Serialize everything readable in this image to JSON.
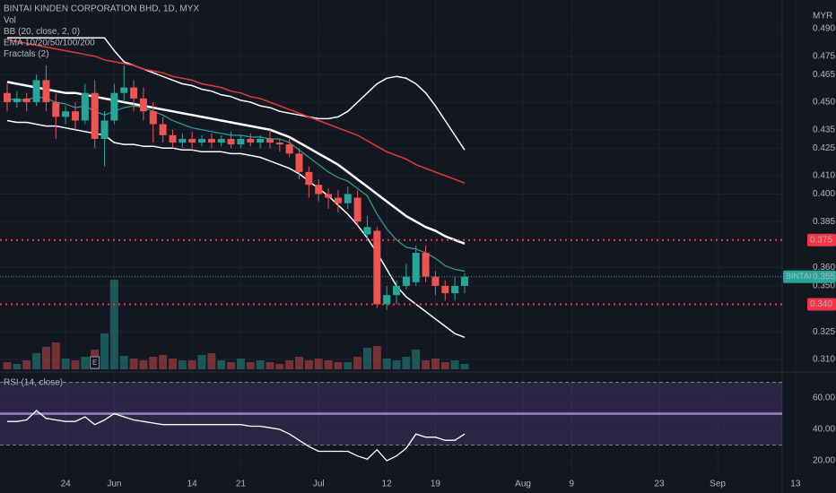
{
  "chart_data": [
    {
      "type": "candlestick",
      "title": "BINTAI KINDEN CORPORATION BHD, 1D, MYX",
      "indicator_labels": [
        "Vol",
        "BB (20, close, 2, 0)",
        "EMA 10/20/50/100/200",
        "Fractals (2)"
      ],
      "currency": "MYR",
      "earnings_marker": "E",
      "up_color": "#26a69a",
      "down_color": "#ef5350",
      "open": [
        0.455,
        0.45,
        0.452,
        0.45,
        0.462,
        0.45,
        0.442,
        0.445,
        0.44,
        0.455,
        0.43,
        0.44,
        0.455,
        0.458,
        0.452,
        0.445,
        0.438,
        0.432,
        0.428,
        0.43,
        0.428,
        0.43,
        0.428,
        0.43,
        0.427,
        0.43,
        0.428,
        0.43,
        0.428,
        0.427,
        0.422,
        0.412,
        0.405,
        0.4,
        0.398,
        0.395,
        0.398,
        0.378,
        0.38,
        0.34,
        0.345,
        0.35,
        0.352,
        0.368,
        0.355,
        0.35,
        0.346,
        0.35
      ],
      "high": [
        0.46,
        0.456,
        0.455,
        0.465,
        0.47,
        0.455,
        0.448,
        0.45,
        0.46,
        0.462,
        0.445,
        0.46,
        0.47,
        0.462,
        0.458,
        0.45,
        0.442,
        0.435,
        0.433,
        0.434,
        0.432,
        0.433,
        0.432,
        0.434,
        0.432,
        0.433,
        0.432,
        0.435,
        0.43,
        0.43,
        0.425,
        0.415,
        0.408,
        0.403,
        0.402,
        0.404,
        0.402,
        0.388,
        0.382,
        0.35,
        0.353,
        0.362,
        0.372,
        0.372,
        0.358,
        0.353,
        0.355,
        0.357
      ],
      "low": [
        0.445,
        0.447,
        0.445,
        0.448,
        0.445,
        0.43,
        0.438,
        0.435,
        0.438,
        0.425,
        0.415,
        0.438,
        0.45,
        0.445,
        0.44,
        0.428,
        0.428,
        0.425,
        0.425,
        0.425,
        0.426,
        0.425,
        0.426,
        0.425,
        0.425,
        0.426,
        0.425,
        0.425,
        0.423,
        0.42,
        0.408,
        0.398,
        0.396,
        0.392,
        0.39,
        0.392,
        0.383,
        0.375,
        0.338,
        0.337,
        0.34,
        0.348,
        0.35,
        0.352,
        0.345,
        0.342,
        0.342,
        0.346
      ],
      "close": [
        0.45,
        0.452,
        0.45,
        0.462,
        0.45,
        0.442,
        0.445,
        0.44,
        0.455,
        0.43,
        0.44,
        0.455,
        0.458,
        0.452,
        0.445,
        0.438,
        0.432,
        0.428,
        0.43,
        0.428,
        0.43,
        0.428,
        0.43,
        0.427,
        0.43,
        0.428,
        0.43,
        0.428,
        0.427,
        0.422,
        0.412,
        0.405,
        0.4,
        0.398,
        0.395,
        0.4,
        0.385,
        0.382,
        0.34,
        0.345,
        0.35,
        0.355,
        0.368,
        0.355,
        0.35,
        0.346,
        0.35,
        0.355
      ],
      "volume": [
        8,
        6,
        10,
        18,
        25,
        30,
        12,
        10,
        14,
        22,
        40,
        100,
        15,
        12,
        10,
        14,
        16,
        12,
        10,
        10,
        16,
        18,
        10,
        8,
        12,
        8,
        10,
        8,
        6,
        10,
        14,
        10,
        12,
        10,
        8,
        8,
        14,
        24,
        26,
        12,
        10,
        14,
        22,
        10,
        12,
        8,
        10,
        6
      ],
      "overlays": [
        {
          "color": "#ffffff",
          "width": 1.5,
          "values": [
            0.485,
            0.485,
            0.485,
            0.485,
            0.485,
            0.485,
            0.485,
            0.485,
            0.485,
            0.485,
            0.485,
            0.478,
            0.472,
            0.47,
            0.468,
            0.466,
            0.464,
            0.462,
            0.46,
            0.459,
            0.457,
            0.456,
            0.454,
            0.453,
            0.451,
            0.45,
            0.448,
            0.447,
            0.445,
            0.444,
            0.443,
            0.442,
            0.441,
            0.441,
            0.442,
            0.445,
            0.45,
            0.455,
            0.46,
            0.463,
            0.464,
            0.463,
            0.46,
            0.455,
            0.448,
            0.44,
            0.432,
            0.424
          ]
        },
        {
          "color": "#ffffff",
          "width": 1.5,
          "values": [
            0.44,
            0.439,
            0.439,
            0.438,
            0.437,
            0.437,
            0.436,
            0.435,
            0.434,
            0.433,
            0.432,
            0.428,
            0.427,
            0.427,
            0.426,
            0.426,
            0.425,
            0.425,
            0.424,
            0.424,
            0.423,
            0.423,
            0.423,
            0.422,
            0.422,
            0.421,
            0.42,
            0.418,
            0.416,
            0.414,
            0.411,
            0.407,
            0.403,
            0.399,
            0.394,
            0.389,
            0.383,
            0.376,
            0.368,
            0.359,
            0.35,
            0.344,
            0.34,
            0.336,
            0.332,
            0.328,
            0.324,
            0.322
          ]
        },
        {
          "color": "#e53935",
          "width": 1.5,
          "values": [
            0.484,
            0.483,
            0.482,
            0.481,
            0.48,
            0.479,
            0.478,
            0.477,
            0.476,
            0.475,
            0.473,
            0.472,
            0.471,
            0.47,
            0.468,
            0.467,
            0.466,
            0.464,
            0.463,
            0.462,
            0.46,
            0.459,
            0.458,
            0.456,
            0.455,
            0.453,
            0.452,
            0.45,
            0.448,
            0.446,
            0.444,
            0.442,
            0.44,
            0.438,
            0.436,
            0.434,
            0.432,
            0.429,
            0.426,
            0.423,
            0.421,
            0.419,
            0.416,
            0.414,
            0.412,
            0.41,
            0.408,
            0.406
          ]
        },
        {
          "color": "#ffffff",
          "width": 2.5,
          "values": [
            0.461,
            0.46,
            0.459,
            0.458,
            0.457,
            0.456,
            0.455,
            0.455,
            0.454,
            0.453,
            0.452,
            0.451,
            0.45,
            0.449,
            0.448,
            0.447,
            0.446,
            0.445,
            0.444,
            0.443,
            0.442,
            0.441,
            0.44,
            0.439,
            0.438,
            0.437,
            0.436,
            0.435,
            0.433,
            0.431,
            0.428,
            0.425,
            0.422,
            0.419,
            0.416,
            0.412,
            0.408,
            0.404,
            0.4,
            0.396,
            0.392,
            0.388,
            0.385,
            0.382,
            0.38,
            0.377,
            0.375,
            0.373
          ]
        },
        {
          "color": "#26a69a",
          "width": 1.2,
          "values": [
            0.452,
            0.451,
            0.451,
            0.453,
            0.452,
            0.45,
            0.449,
            0.447,
            0.448,
            0.445,
            0.443,
            0.445,
            0.447,
            0.448,
            0.447,
            0.445,
            0.443,
            0.44,
            0.438,
            0.436,
            0.435,
            0.434,
            0.433,
            0.432,
            0.432,
            0.431,
            0.431,
            0.43,
            0.43,
            0.428,
            0.424,
            0.42,
            0.416,
            0.412,
            0.409,
            0.407,
            0.403,
            0.399,
            0.389,
            0.381,
            0.375,
            0.371,
            0.37,
            0.368,
            0.365,
            0.361,
            0.359,
            0.358
          ]
        }
      ],
      "ylim": [
        0.3046,
        0.5056
      ],
      "yticks": [
        {
          "value": 0.49,
          "label": "0.490"
        },
        {
          "value": 0.475,
          "label": "0.475"
        },
        {
          "value": 0.465,
          "label": "0.465"
        },
        {
          "value": 0.45,
          "label": "0.450"
        },
        {
          "value": 0.435,
          "label": "0.435"
        },
        {
          "value": 0.425,
          "label": "0.425"
        },
        {
          "value": 0.41,
          "label": "0.410"
        },
        {
          "value": 0.4,
          "label": "0.400"
        },
        {
          "value": 0.385,
          "label": "0.385"
        },
        {
          "value": 0.36,
          "label": "0.360"
        },
        {
          "value": 0.35,
          "label": "0.350"
        },
        {
          "value": 0.325,
          "label": "0.325"
        },
        {
          "value": 0.31,
          "label": "0.310"
        }
      ],
      "xlim": [
        -0.74,
        85.16
      ],
      "xticks": [
        {
          "value": 6,
          "label": "24"
        },
        {
          "value": 11,
          "label": "Jun"
        },
        {
          "value": 19,
          "label": "14"
        },
        {
          "value": 24,
          "label": "21"
        },
        {
          "value": 32,
          "label": "Jul"
        },
        {
          "value": 39,
          "label": "12"
        },
        {
          "value": 44,
          "label": "19"
        },
        {
          "value": 53,
          "label": "Aug"
        },
        {
          "value": 58,
          "label": "9"
        },
        {
          "value": 67,
          "label": "23"
        },
        {
          "value": 73,
          "label": "Sep"
        },
        {
          "value": 81,
          "label": "13"
        }
      ],
      "levels": [
        {
          "value": 0.375,
          "label": "0.375",
          "color": "#f23645"
        },
        {
          "value": 0.34,
          "label": "0.340",
          "color": "#f23645"
        }
      ],
      "last_price": {
        "name": "BINTAI",
        "value": 0.355,
        "label": "0.355",
        "color": "#26a69a"
      },
      "grid": true
    },
    {
      "type": "line",
      "title": "RSI (14, close)",
      "color": "#ffffff",
      "values": [
        45,
        45,
        46,
        52,
        47,
        46,
        45,
        45,
        48,
        43,
        46,
        50,
        48,
        46,
        45,
        44,
        43,
        43,
        43,
        43,
        43,
        43,
        43,
        43,
        43,
        42,
        42,
        41,
        40,
        37,
        33,
        29,
        26,
        26,
        26,
        26,
        23,
        21,
        27,
        20,
        23,
        28,
        37,
        35,
        35,
        33,
        33,
        37
      ],
      "band": [
        30,
        70
      ],
      "midline": 50,
      "band_color": "#7e57c2",
      "ylim": [
        15.4,
        73.7
      ],
      "yticks": [
        {
          "value": 60,
          "label": "60.00"
        },
        {
          "value": 40,
          "label": "40.00"
        },
        {
          "value": 20,
          "label": "20.00"
        }
      ],
      "grid": true
    }
  ]
}
